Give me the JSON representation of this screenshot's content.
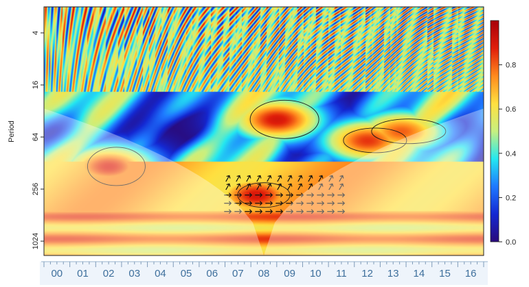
{
  "chart_data": {
    "type": "heatmap",
    "title": "",
    "ylabel": "Period",
    "xlabel": "",
    "y_scale": "log2",
    "y_ticks": [
      "4",
      "16",
      "64",
      "256",
      "1024"
    ],
    "y_tick_values": [
      4,
      16,
      64,
      256,
      1024
    ],
    "y_range": [
      2,
      1500
    ],
    "x_categories": [
      "00",
      "01",
      "02",
      "03",
      "04",
      "05",
      "06",
      "07",
      "08",
      "09",
      "10",
      "11",
      "12",
      "13",
      "14",
      "15",
      "16"
    ],
    "colorbar": {
      "ticks": [
        "0.0",
        "0.2",
        "0.4",
        "0.6",
        "0.8"
      ],
      "tick_values": [
        0.0,
        0.2,
        0.4,
        0.6,
        0.8
      ],
      "range": [
        0,
        1
      ],
      "colors": [
        "#2a0a7a",
        "#1428d2",
        "#1e78ff",
        "#24e8f0",
        "#c8f080",
        "#ffe040",
        "#ff8a1e",
        "#e01e0a",
        "#a8000a"
      ]
    },
    "significant_regions": [
      {
        "x_center": 8.2,
        "period": 300,
        "level": 0.9
      },
      {
        "x_center": 2.5,
        "period": 140,
        "level": 0.88
      },
      {
        "x_center": 12.5,
        "period": 70,
        "level": 0.85
      },
      {
        "x_center": 9.0,
        "period": 40,
        "level": 0.9
      },
      {
        "x_center": 13.8,
        "period": 55,
        "level": 0.8
      }
    ],
    "grid": false
  }
}
